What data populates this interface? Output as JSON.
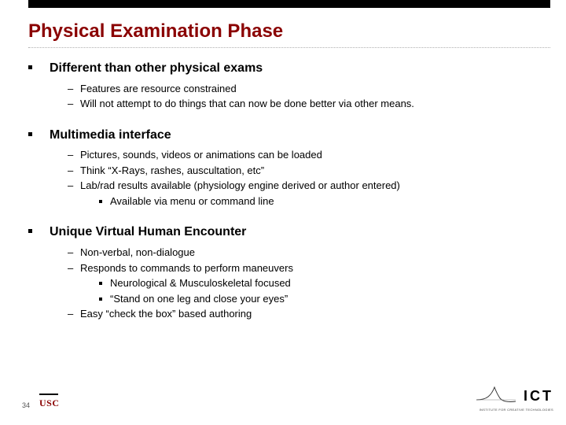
{
  "colors": {
    "accent": "#8a0000",
    "text": "#000000",
    "dotted_rule": "#b0b0b0",
    "background": "#ffffff"
  },
  "typography": {
    "title_fontsize": 24,
    "section_fontsize": 16,
    "body_fontsize": 13,
    "footer_fontsize": 9
  },
  "title": "Physical Examination Phase",
  "sections": [
    {
      "heading": "Different than other physical exams",
      "items": [
        {
          "text": "Features are resource constrained"
        },
        {
          "text": "Will not attempt to do things that can now be done better via other means."
        }
      ]
    },
    {
      "heading": "Multimedia interface",
      "items": [
        {
          "text": "Pictures, sounds, videos or animations can be loaded"
        },
        {
          "text": "Think “X-Rays, rashes, auscultation, etc”"
        },
        {
          "text": "Lab/rad results available (physiology engine derived or author entered)",
          "subitems": [
            "Available via menu or command line"
          ]
        }
      ]
    },
    {
      "heading": "Unique Virtual Human Encounter",
      "items": [
        {
          "text": "Non-verbal, non-dialogue"
        },
        {
          "text": "Responds to commands to perform maneuvers",
          "subitems": [
            "Neurological & Musculoskeletal focused",
            "“Stand on one leg and close your eyes”"
          ]
        },
        {
          "text": "Easy “check the box” based authoring"
        }
      ]
    }
  ],
  "footer": {
    "page_number": "34",
    "usc_label": "USC",
    "ict_label": "ICT",
    "ict_sub": "INSTITUTE FOR CREATIVE TECHNOLOGIES"
  }
}
